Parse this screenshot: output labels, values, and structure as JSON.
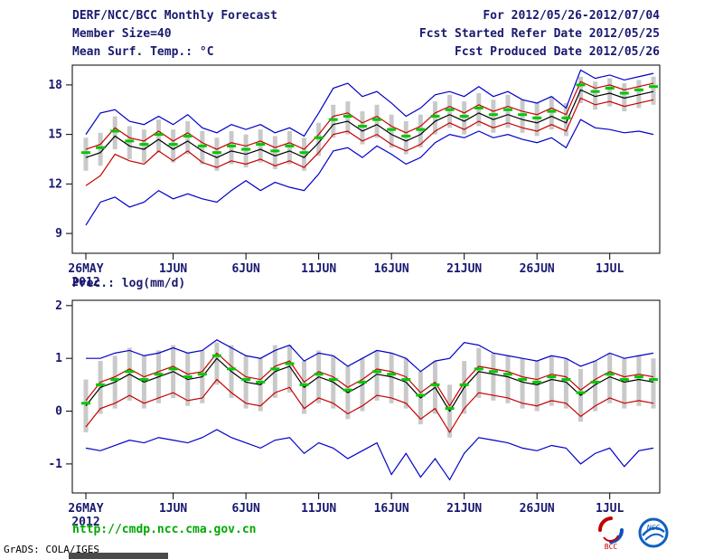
{
  "header": {
    "title": "DERF/NCC/BCC Monthly Forecast",
    "member_size": "Member Size=40",
    "for_range": "For 2012/05/26-2012/07/04",
    "fcst_started": "Fcst Started Refer Date 2012/05/25",
    "fcst_produced": "Fcst Produced Date 2012/05/26"
  },
  "footer": {
    "url": "http://cmdp.ncc.cma.gov.cn",
    "credit": "GrADS: COLA/IGES",
    "logos": [
      {
        "label": "BCC"
      },
      {
        "label": "NCC"
      }
    ]
  },
  "colors": {
    "text": "#191970",
    "frame": "#000000",
    "bars": "#c9c9c9",
    "blue": "#0000c8",
    "red": "#c80000",
    "black": "#000000",
    "green": "#00c800",
    "url_green": "#00a800"
  },
  "chart_data": [
    {
      "type": "line",
      "title": "Mean Surf. Temp.: °C",
      "xlabel": "",
      "ylabel": "",
      "x_year": "2012",
      "n_days": 40,
      "x_tick_labels": [
        "26MAY",
        "1JUN",
        "6JUN",
        "11JUN",
        "16JUN",
        "21JUN",
        "26JUN",
        "1JUL"
      ],
      "x_tick_positions": [
        0,
        6,
        11,
        16,
        21,
        26,
        31,
        36
      ],
      "ylim": [
        7.8,
        19.2
      ],
      "yticks": [
        9,
        12,
        15,
        18
      ],
      "grid": false,
      "legend": false,
      "bars": {
        "name": "ensemble-spread",
        "color": "#c9c9c9",
        "upper": [
          14.8,
          15.1,
          16.1,
          15.5,
          15.3,
          15.9,
          15.3,
          15.8,
          15.2,
          14.8,
          15.2,
          15.0,
          15.3,
          14.9,
          15.2,
          14.8,
          15.7,
          16.8,
          17.0,
          16.4,
          16.8,
          16.2,
          15.8,
          16.2,
          17.0,
          17.4,
          17.0,
          17.5,
          17.1,
          17.4,
          17.1,
          16.9,
          17.3,
          16.9,
          18.5,
          18.2,
          18.4,
          18.1,
          18.3,
          18.5
        ],
        "lower": [
          12.8,
          13.1,
          14.1,
          13.5,
          13.3,
          13.9,
          13.3,
          13.8,
          13.2,
          12.8,
          13.2,
          13.0,
          13.3,
          12.9,
          13.2,
          12.8,
          13.7,
          14.8,
          15.0,
          14.4,
          14.8,
          14.2,
          13.8,
          14.2,
          15.0,
          15.4,
          15.0,
          15.5,
          15.1,
          15.4,
          15.1,
          14.9,
          15.3,
          14.9,
          16.9,
          16.5,
          16.7,
          16.4,
          16.6,
          16.8
        ]
      },
      "series": [
        {
          "name": "maximum",
          "style": "line",
          "color": "#0000c8",
          "values": [
            15.0,
            16.3,
            16.5,
            15.8,
            15.6,
            16.1,
            15.6,
            16.2,
            15.4,
            15.1,
            15.6,
            15.3,
            15.6,
            15.1,
            15.4,
            14.9,
            16.3,
            17.8,
            18.1,
            17.3,
            17.6,
            16.9,
            16.1,
            16.6,
            17.4,
            17.6,
            17.3,
            17.9,
            17.3,
            17.6,
            17.1,
            16.9,
            17.3,
            16.6,
            18.9,
            18.4,
            18.6,
            18.3,
            18.5,
            18.7
          ]
        },
        {
          "name": "upper-quartile",
          "style": "line",
          "color": "#c80000",
          "values": [
            14.1,
            14.4,
            15.4,
            14.8,
            14.6,
            15.2,
            14.6,
            15.1,
            14.5,
            14.1,
            14.5,
            14.3,
            14.6,
            14.2,
            14.5,
            14.1,
            15.0,
            16.1,
            16.3,
            15.7,
            16.1,
            15.5,
            15.1,
            15.5,
            16.3,
            16.7,
            16.3,
            16.8,
            16.4,
            16.7,
            16.4,
            16.2,
            16.6,
            16.2,
            18.2,
            17.8,
            18.0,
            17.7,
            17.9,
            18.1
          ]
        },
        {
          "name": "median",
          "style": "line",
          "color": "#000000",
          "values": [
            13.6,
            13.9,
            14.9,
            14.3,
            14.1,
            14.7,
            14.1,
            14.6,
            14.0,
            13.6,
            14.0,
            13.8,
            14.1,
            13.7,
            14.0,
            13.6,
            14.5,
            15.6,
            15.8,
            15.2,
            15.6,
            15.0,
            14.6,
            15.0,
            15.8,
            16.2,
            15.8,
            16.3,
            15.9,
            16.2,
            15.9,
            15.7,
            16.1,
            15.7,
            17.7,
            17.3,
            17.5,
            17.2,
            17.4,
            17.6
          ]
        },
        {
          "name": "lower-quartile",
          "style": "line",
          "color": "#c80000",
          "values": [
            11.9,
            12.5,
            13.8,
            13.4,
            13.2,
            14.0,
            13.4,
            14.0,
            13.3,
            13.0,
            13.4,
            13.2,
            13.5,
            13.1,
            13.4,
            13.0,
            13.9,
            15.0,
            15.2,
            14.6,
            15.0,
            14.4,
            14.0,
            14.4,
            15.2,
            15.7,
            15.3,
            15.8,
            15.4,
            15.7,
            15.4,
            15.2,
            15.6,
            15.2,
            17.2,
            16.8,
            17.0,
            16.7,
            16.9,
            17.1
          ]
        },
        {
          "name": "minimum",
          "style": "line",
          "color": "#0000c8",
          "values": [
            9.5,
            10.9,
            11.2,
            10.6,
            10.9,
            11.6,
            11.1,
            11.4,
            11.1,
            10.9,
            11.6,
            12.2,
            11.6,
            12.1,
            11.8,
            11.6,
            12.6,
            14.0,
            14.2,
            13.6,
            14.3,
            13.8,
            13.2,
            13.6,
            14.5,
            15.0,
            14.8,
            15.2,
            14.8,
            15.0,
            14.7,
            14.5,
            14.8,
            14.2,
            15.9,
            15.4,
            15.3,
            15.1,
            15.2,
            15.0
          ]
        },
        {
          "name": "ensemble-mean",
          "style": "ticks",
          "color": "#00c800",
          "values": [
            13.9,
            14.2,
            15.2,
            14.6,
            14.4,
            15.0,
            14.4,
            14.9,
            14.3,
            13.9,
            14.3,
            14.1,
            14.4,
            14.0,
            14.3,
            13.9,
            14.8,
            15.9,
            16.1,
            15.5,
            15.9,
            15.3,
            14.9,
            15.3,
            16.1,
            16.5,
            16.1,
            16.6,
            16.2,
            16.5,
            16.2,
            16.0,
            16.4,
            16.0,
            18.0,
            17.6,
            17.8,
            17.5,
            17.7,
            17.9
          ]
        }
      ]
    },
    {
      "type": "line",
      "title": "Prec.: log(mm/d)",
      "xlabel": "",
      "ylabel": "",
      "x_year": "2012",
      "n_days": 40,
      "x_tick_labels": [
        "26MAY",
        "1JUN",
        "6JUN",
        "11JUN",
        "16JUN",
        "21JUN",
        "26JUN",
        "1JUL"
      ],
      "x_tick_positions": [
        0,
        6,
        11,
        16,
        21,
        26,
        31,
        36
      ],
      "ylim": [
        -1.55,
        2.1
      ],
      "yticks": [
        -1,
        0,
        1,
        2
      ],
      "grid": false,
      "legend": false,
      "bars": {
        "name": "ensemble-spread",
        "color": "#c9c9c9",
        "upper": [
          0.6,
          0.95,
          1.05,
          1.2,
          1.05,
          1.15,
          1.25,
          1.1,
          1.15,
          1.3,
          1.25,
          1.05,
          1.0,
          1.25,
          1.25,
          0.95,
          1.15,
          1.05,
          0.85,
          1.0,
          1.15,
          1.1,
          1.0,
          0.75,
          0.95,
          0.5,
          0.95,
          1.2,
          1.1,
          1.05,
          1.0,
          0.95,
          1.05,
          1.0,
          0.8,
          0.95,
          1.1,
          1.0,
          1.05,
          1.0
        ],
        "lower": [
          -0.4,
          -0.05,
          0.05,
          0.2,
          0.05,
          0.15,
          0.25,
          0.1,
          0.15,
          0.5,
          0.25,
          0.05,
          0.0,
          0.25,
          0.35,
          -0.05,
          0.15,
          0.05,
          -0.15,
          0.0,
          0.2,
          0.15,
          0.05,
          -0.25,
          -0.05,
          -0.5,
          -0.05,
          0.25,
          0.2,
          0.15,
          0.05,
          0.0,
          0.1,
          0.05,
          -0.2,
          0.0,
          0.15,
          0.05,
          0.1,
          0.05
        ]
      },
      "series": [
        {
          "name": "maximum",
          "style": "line",
          "color": "#0000c8",
          "values": [
            1.0,
            1.0,
            1.1,
            1.15,
            1.05,
            1.1,
            1.2,
            1.1,
            1.15,
            1.35,
            1.2,
            1.05,
            1.0,
            1.15,
            1.25,
            0.95,
            1.1,
            1.05,
            0.85,
            1.0,
            1.15,
            1.1,
            1.0,
            0.75,
            0.95,
            1.0,
            1.3,
            1.25,
            1.1,
            1.05,
            1.0,
            0.95,
            1.05,
            1.0,
            0.85,
            0.95,
            1.1,
            1.0,
            1.05,
            1.1
          ]
        },
        {
          "name": "upper-quartile",
          "style": "line",
          "color": "#c80000",
          "values": [
            0.2,
            0.55,
            0.65,
            0.8,
            0.65,
            0.75,
            0.85,
            0.7,
            0.75,
            1.1,
            0.85,
            0.65,
            0.6,
            0.85,
            0.95,
            0.55,
            0.75,
            0.65,
            0.45,
            0.6,
            0.8,
            0.75,
            0.65,
            0.35,
            0.55,
            0.1,
            0.55,
            0.85,
            0.8,
            0.75,
            0.65,
            0.6,
            0.7,
            0.65,
            0.4,
            0.6,
            0.75,
            0.65,
            0.7,
            0.65
          ]
        },
        {
          "name": "median",
          "style": "line",
          "color": "#000000",
          "values": [
            0.1,
            0.45,
            0.55,
            0.7,
            0.55,
            0.65,
            0.75,
            0.6,
            0.65,
            1.0,
            0.75,
            0.55,
            0.5,
            0.75,
            0.85,
            0.45,
            0.65,
            0.55,
            0.35,
            0.5,
            0.7,
            0.65,
            0.55,
            0.25,
            0.45,
            0.0,
            0.45,
            0.75,
            0.7,
            0.65,
            0.55,
            0.5,
            0.6,
            0.55,
            0.3,
            0.5,
            0.65,
            0.55,
            0.6,
            0.55
          ]
        },
        {
          "name": "lower-quartile",
          "style": "line",
          "color": "#c80000",
          "values": [
            -0.3,
            0.05,
            0.15,
            0.3,
            0.15,
            0.25,
            0.35,
            0.2,
            0.25,
            0.6,
            0.35,
            0.15,
            0.1,
            0.35,
            0.45,
            0.05,
            0.25,
            0.15,
            -0.05,
            0.1,
            0.3,
            0.25,
            0.15,
            -0.15,
            0.05,
            -0.4,
            0.05,
            0.35,
            0.3,
            0.25,
            0.15,
            0.1,
            0.2,
            0.15,
            -0.1,
            0.1,
            0.25,
            0.15,
            0.2,
            0.15
          ]
        },
        {
          "name": "minimum",
          "style": "line",
          "color": "#0000c8",
          "values": [
            -0.7,
            -0.75,
            -0.65,
            -0.55,
            -0.6,
            -0.5,
            -0.55,
            -0.6,
            -0.5,
            -0.35,
            -0.5,
            -0.6,
            -0.7,
            -0.55,
            -0.5,
            -0.8,
            -0.6,
            -0.7,
            -0.9,
            -0.75,
            -0.6,
            -1.2,
            -0.8,
            -1.25,
            -0.9,
            -1.3,
            -0.8,
            -0.5,
            -0.55,
            -0.6,
            -0.7,
            -0.75,
            -0.65,
            -0.7,
            -1.0,
            -0.8,
            -0.7,
            -1.05,
            -0.75,
            -0.7
          ]
        },
        {
          "name": "ensemble-mean",
          "style": "ticks",
          "color": "#00c800",
          "values": [
            0.15,
            0.5,
            0.6,
            0.75,
            0.6,
            0.7,
            0.8,
            0.65,
            0.7,
            1.05,
            0.8,
            0.6,
            0.55,
            0.8,
            0.9,
            0.5,
            0.7,
            0.6,
            0.4,
            0.55,
            0.75,
            0.7,
            0.6,
            0.3,
            0.5,
            0.05,
            0.5,
            0.8,
            0.75,
            0.7,
            0.6,
            0.55,
            0.65,
            0.6,
            0.35,
            0.55,
            0.7,
            0.6,
            0.65,
            0.6
          ]
        }
      ]
    }
  ]
}
